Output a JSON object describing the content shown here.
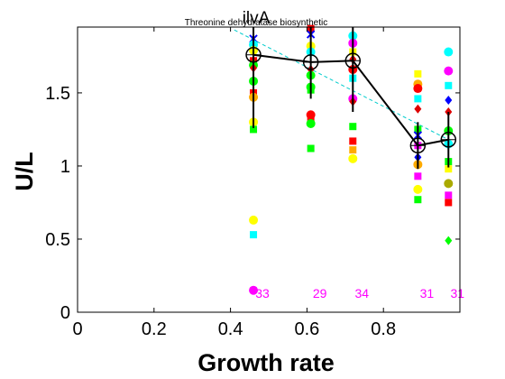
{
  "chart_data": {
    "type": "scatter",
    "title": "ilvA",
    "subtitle": "Threonine dehydratase biosynthetic",
    "xlabel": "Growth rate",
    "ylabel": "U/L",
    "xlim": [
      0,
      1.0
    ],
    "ylim": [
      0,
      1.95
    ],
    "xticks": [
      0,
      0.2,
      0.4,
      0.6,
      0.8
    ],
    "xtick_labels": [
      "0",
      "0.2",
      "0.4",
      "0.6",
      "0.8"
    ],
    "yticks": [
      0,
      0.5,
      1,
      1.5
    ],
    "ytick_labels": [
      "0",
      "0.5",
      "1",
      "1.5"
    ],
    "grid": false,
    "legend": "none",
    "count_labels": [
      {
        "x": 0.46,
        "text": "33"
      },
      {
        "x": 0.61,
        "text": "29"
      },
      {
        "x": 0.72,
        "text": "34"
      },
      {
        "x": 0.89,
        "text": "31"
      },
      {
        "x": 0.97,
        "text": "31"
      }
    ],
    "count_label_y": 0.1,
    "count_color": "#ff00ff",
    "mean_line": {
      "name": "mean",
      "x": [
        0.46,
        0.61,
        0.72,
        0.89,
        0.97
      ],
      "y": [
        1.76,
        1.71,
        1.72,
        1.14,
        1.18
      ],
      "err": [
        0.5,
        0.25,
        0.35,
        0.16,
        0.19
      ],
      "color": "#000000"
    },
    "fit_line": {
      "x": [
        0.41,
        0.97
      ],
      "y": [
        1.93,
        1.18
      ],
      "color": "#00cccc"
    },
    "points": [
      {
        "x": 0.46,
        "y": 1.87,
        "c": "#0000ff",
        "m": "x"
      },
      {
        "x": 0.46,
        "y": 1.83,
        "c": "#00ffff",
        "m": "o"
      },
      {
        "x": 0.46,
        "y": 1.79,
        "c": "#ffff00",
        "m": "o"
      },
      {
        "x": 0.46,
        "y": 1.72,
        "c": "#ff0000",
        "m": "s"
      },
      {
        "x": 0.46,
        "y": 1.69,
        "c": "#00ff00",
        "m": "o"
      },
      {
        "x": 0.46,
        "y": 1.67,
        "c": "#dd0000",
        "m": "d"
      },
      {
        "x": 0.46,
        "y": 1.58,
        "c": "#00ff00",
        "m": "o"
      },
      {
        "x": 0.46,
        "y": 1.5,
        "c": "#ff0000",
        "m": "s"
      },
      {
        "x": 0.46,
        "y": 1.47,
        "c": "#ffaa00",
        "m": "o"
      },
      {
        "x": 0.46,
        "y": 1.3,
        "c": "#ffff00",
        "m": "o"
      },
      {
        "x": 0.46,
        "y": 1.25,
        "c": "#00ff00",
        "m": "s"
      },
      {
        "x": 0.46,
        "y": 0.63,
        "c": "#ffff00",
        "m": "o"
      },
      {
        "x": 0.46,
        "y": 0.53,
        "c": "#00ffff",
        "m": "s"
      },
      {
        "x": 0.46,
        "y": 0.15,
        "c": "#ff00ff",
        "m": "o"
      },
      {
        "x": 0.61,
        "y": 1.94,
        "c": "#ff0000",
        "m": "s"
      },
      {
        "x": 0.61,
        "y": 1.9,
        "c": "#0000ff",
        "m": "x"
      },
      {
        "x": 0.61,
        "y": 1.82,
        "c": "#ffff00",
        "m": "o"
      },
      {
        "x": 0.61,
        "y": 1.78,
        "c": "#00ffff",
        "m": "o"
      },
      {
        "x": 0.61,
        "y": 1.66,
        "c": "#dd0000",
        "m": "d"
      },
      {
        "x": 0.61,
        "y": 1.62,
        "c": "#00ff00",
        "m": "o"
      },
      {
        "x": 0.61,
        "y": 1.54,
        "c": "#00ff00",
        "m": "o"
      },
      {
        "x": 0.61,
        "y": 1.52,
        "c": "#00ff00",
        "m": "s"
      },
      {
        "x": 0.61,
        "y": 1.35,
        "c": "#ff0000",
        "m": "o"
      },
      {
        "x": 0.61,
        "y": 1.33,
        "c": "#ff0000",
        "m": "s"
      },
      {
        "x": 0.61,
        "y": 1.29,
        "c": "#00ff00",
        "m": "o"
      },
      {
        "x": 0.61,
        "y": 1.12,
        "c": "#00ff00",
        "m": "s"
      },
      {
        "x": 0.72,
        "y": 1.89,
        "c": "#00ffff",
        "m": "o"
      },
      {
        "x": 0.72,
        "y": 1.84,
        "c": "#ff00ff",
        "m": "o"
      },
      {
        "x": 0.72,
        "y": 1.78,
        "c": "#ffff00",
        "m": "s"
      },
      {
        "x": 0.72,
        "y": 1.73,
        "c": "#dd0000",
        "m": "d"
      },
      {
        "x": 0.72,
        "y": 1.66,
        "c": "#ff0000",
        "m": "o"
      },
      {
        "x": 0.72,
        "y": 1.6,
        "c": "#00ffff",
        "m": "s"
      },
      {
        "x": 0.72,
        "y": 1.46,
        "c": "#ff00ff",
        "m": "o"
      },
      {
        "x": 0.72,
        "y": 1.44,
        "c": "#dd0000",
        "m": "d"
      },
      {
        "x": 0.72,
        "y": 1.27,
        "c": "#00ff00",
        "m": "s"
      },
      {
        "x": 0.72,
        "y": 1.17,
        "c": "#ff0000",
        "m": "s"
      },
      {
        "x": 0.72,
        "y": 1.11,
        "c": "#ffaa00",
        "m": "s"
      },
      {
        "x": 0.72,
        "y": 1.05,
        "c": "#ffff00",
        "m": "o"
      },
      {
        "x": 0.89,
        "y": 1.63,
        "c": "#ffff00",
        "m": "s"
      },
      {
        "x": 0.89,
        "y": 1.56,
        "c": "#ffaa00",
        "m": "o"
      },
      {
        "x": 0.89,
        "y": 1.53,
        "c": "#ff0000",
        "m": "o"
      },
      {
        "x": 0.89,
        "y": 1.46,
        "c": "#00ffff",
        "m": "s"
      },
      {
        "x": 0.89,
        "y": 1.39,
        "c": "#dd0000",
        "m": "d"
      },
      {
        "x": 0.89,
        "y": 1.25,
        "c": "#00ff00",
        "m": "s"
      },
      {
        "x": 0.89,
        "y": 1.21,
        "c": "#0000ff",
        "m": "x"
      },
      {
        "x": 0.89,
        "y": 1.14,
        "c": "#ff00ff",
        "m": "s"
      },
      {
        "x": 0.89,
        "y": 1.06,
        "c": "#0000ff",
        "m": "d"
      },
      {
        "x": 0.89,
        "y": 1.01,
        "c": "#ffaa00",
        "m": "o"
      },
      {
        "x": 0.89,
        "y": 0.93,
        "c": "#ff00ff",
        "m": "s"
      },
      {
        "x": 0.89,
        "y": 0.84,
        "c": "#ffff00",
        "m": "o"
      },
      {
        "x": 0.89,
        "y": 0.77,
        "c": "#00ff00",
        "m": "s"
      },
      {
        "x": 0.97,
        "y": 1.78,
        "c": "#00ffff",
        "m": "o"
      },
      {
        "x": 0.97,
        "y": 1.65,
        "c": "#ff00ff",
        "m": "o"
      },
      {
        "x": 0.97,
        "y": 1.55,
        "c": "#00ffff",
        "m": "s"
      },
      {
        "x": 0.97,
        "y": 1.45,
        "c": "#0000ff",
        "m": "d"
      },
      {
        "x": 0.97,
        "y": 1.37,
        "c": "#dd0000",
        "m": "d"
      },
      {
        "x": 0.97,
        "y": 1.24,
        "c": "#00ff00",
        "m": "o"
      },
      {
        "x": 0.97,
        "y": 1.15,
        "c": "#00ffff",
        "m": "o"
      },
      {
        "x": 0.97,
        "y": 1.03,
        "c": "#00ff00",
        "m": "s"
      },
      {
        "x": 0.97,
        "y": 0.98,
        "c": "#ffff00",
        "m": "s"
      },
      {
        "x": 0.97,
        "y": 0.88,
        "c": "#aaaa00",
        "m": "o"
      },
      {
        "x": 0.97,
        "y": 0.8,
        "c": "#ff00ff",
        "m": "s"
      },
      {
        "x": 0.97,
        "y": 0.75,
        "c": "#ff0000",
        "m": "s"
      },
      {
        "x": 0.97,
        "y": 0.49,
        "c": "#00ff00",
        "m": "d"
      }
    ]
  }
}
